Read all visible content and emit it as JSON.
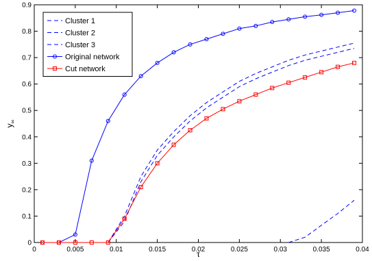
{
  "chart_data": {
    "type": "line",
    "title": "",
    "xlabel": "τ",
    "ylabel": "y",
    "ylabel_subscript": "∞",
    "xlim": [
      0,
      0.04
    ],
    "ylim": [
      0,
      0.9
    ],
    "xticks": [
      0,
      0.005,
      0.01,
      0.015,
      0.02,
      0.025,
      0.03,
      0.035,
      0.04
    ],
    "xtick_labels": [
      "0",
      "0.005",
      "0.01",
      "0.015",
      "0.02",
      "0.025",
      "0.03",
      "0.035",
      "0.04"
    ],
    "yticks": [
      0,
      0.1,
      0.2,
      0.3,
      0.4,
      0.5,
      0.6,
      0.7,
      0.8,
      0.9
    ],
    "ytick_labels": [
      "0",
      "0.1",
      "0.2",
      "0.3",
      "0.4",
      "0.5",
      "0.6",
      "0.7",
      "0.8",
      "0.9"
    ],
    "grid": false,
    "legend_position": "top-left",
    "series": [
      {
        "name": "Cluster 1",
        "color": "#0000ff",
        "style": "dashed",
        "marker": "none",
        "x": [
          0.031,
          0.033,
          0.035,
          0.037,
          0.039
        ],
        "y": [
          0,
          0.02,
          0.065,
          0.11,
          0.16
        ]
      },
      {
        "name": "Cluster 2",
        "color": "#0000ff",
        "style": "dashed",
        "marker": "none",
        "x": [
          0.009,
          0.011,
          0.013,
          0.015,
          0.017,
          0.019,
          0.021,
          0.023,
          0.025,
          0.027,
          0.029,
          0.031,
          0.033,
          0.035,
          0.037,
          0.039
        ],
        "y": [
          0,
          0.1,
          0.25,
          0.35,
          0.42,
          0.48,
          0.53,
          0.57,
          0.61,
          0.64,
          0.665,
          0.69,
          0.71,
          0.725,
          0.74,
          0.755
        ]
      },
      {
        "name": "Cluster 3",
        "color": "#0000ff",
        "style": "dashed",
        "marker": "none",
        "x": [
          0.009,
          0.011,
          0.013,
          0.015,
          0.017,
          0.019,
          0.021,
          0.023,
          0.025,
          0.027,
          0.029,
          0.031,
          0.033,
          0.035,
          0.037,
          0.039
        ],
        "y": [
          0,
          0.08,
          0.23,
          0.33,
          0.4,
          0.46,
          0.51,
          0.55,
          0.59,
          0.62,
          0.645,
          0.67,
          0.69,
          0.705,
          0.72,
          0.735
        ]
      },
      {
        "name": "Original network",
        "color": "#0000ff",
        "style": "solid",
        "marker": "circle",
        "x": [
          0.001,
          0.003,
          0.005,
          0.007,
          0.009,
          0.011,
          0.013,
          0.015,
          0.017,
          0.019,
          0.021,
          0.023,
          0.025,
          0.027,
          0.029,
          0.031,
          0.033,
          0.035,
          0.037,
          0.039
        ],
        "y": [
          0,
          0,
          0.03,
          0.31,
          0.46,
          0.56,
          0.63,
          0.68,
          0.72,
          0.75,
          0.77,
          0.79,
          0.81,
          0.82,
          0.835,
          0.845,
          0.855,
          0.862,
          0.87,
          0.878
        ]
      },
      {
        "name": "Cut network",
        "color": "#ff0000",
        "style": "solid",
        "marker": "square",
        "x": [
          0.001,
          0.003,
          0.005,
          0.007,
          0.009,
          0.011,
          0.013,
          0.015,
          0.017,
          0.019,
          0.021,
          0.023,
          0.025,
          0.027,
          0.029,
          0.031,
          0.033,
          0.035,
          0.037,
          0.039
        ],
        "y": [
          0,
          0,
          0,
          0,
          0,
          0.09,
          0.21,
          0.3,
          0.37,
          0.425,
          0.47,
          0.505,
          0.535,
          0.56,
          0.585,
          0.605,
          0.625,
          0.645,
          0.665,
          0.68
        ]
      }
    ]
  }
}
